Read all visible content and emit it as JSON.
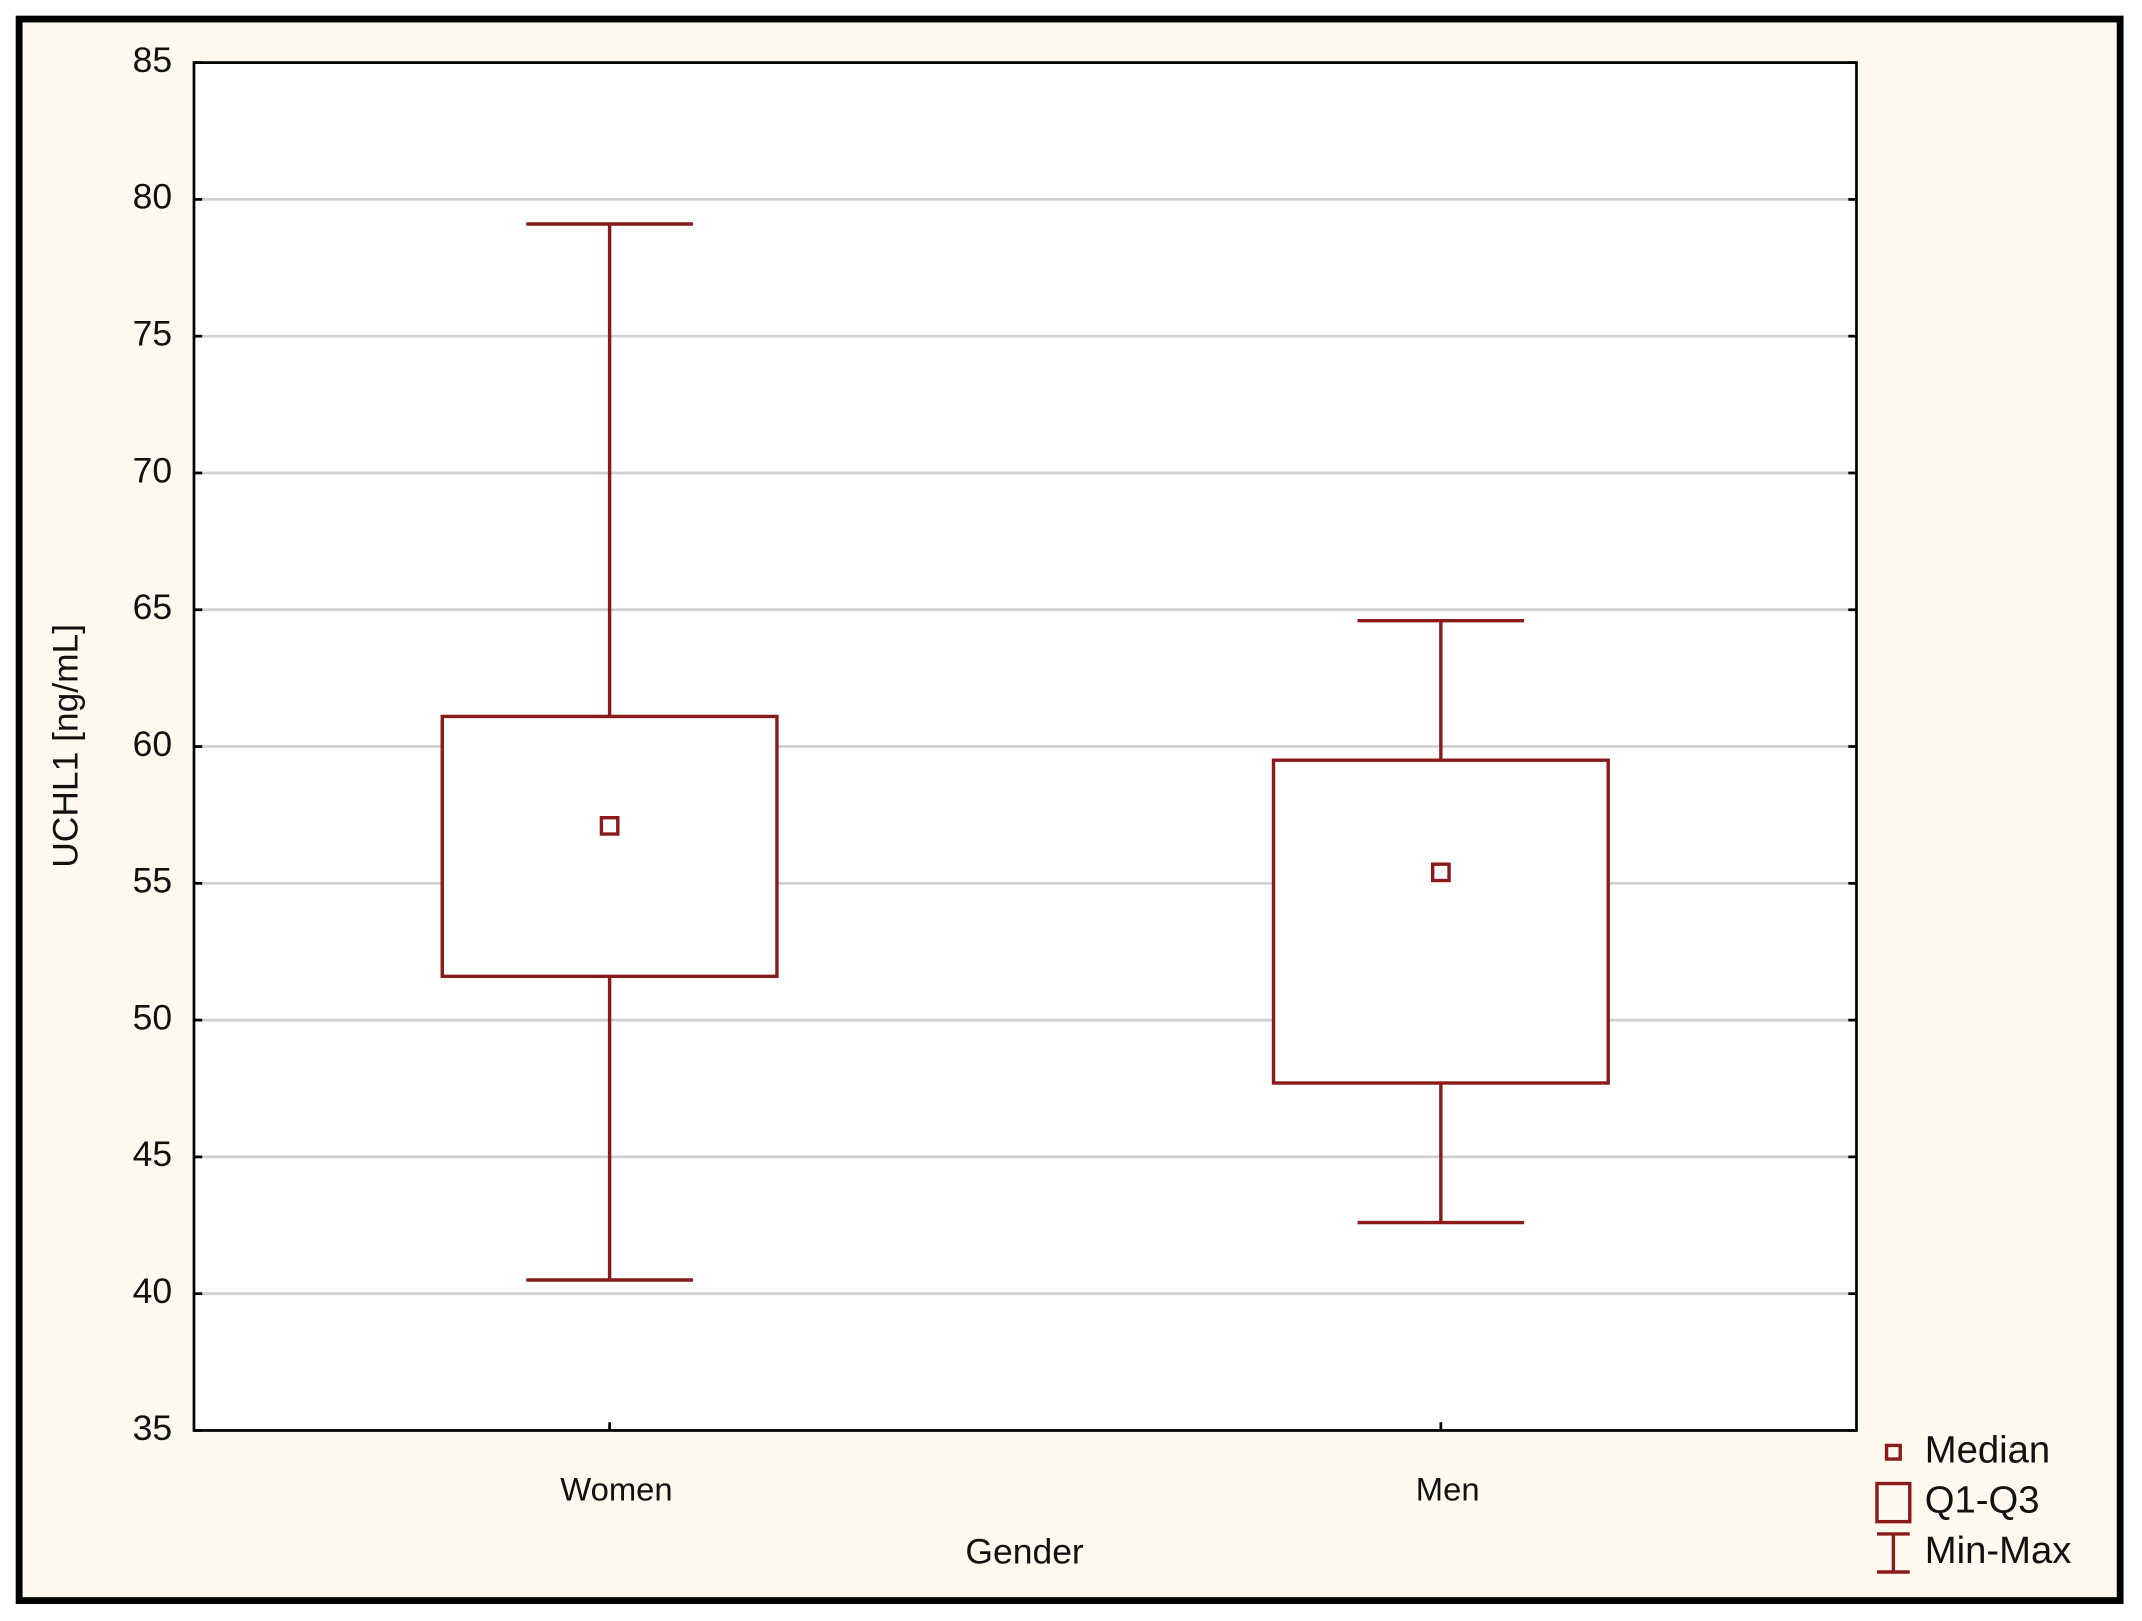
{
  "chart_data": {
    "type": "box",
    "y_label": "UCHL1 [ng/mL]",
    "x_label": "Gender",
    "categories": [
      "Women",
      "Men"
    ],
    "min": [
      40.5,
      42.6
    ],
    "q1": [
      51.6,
      47.7
    ],
    "median": [
      57.1,
      55.4
    ],
    "q3": [
      61.1,
      59.5
    ],
    "max": [
      79.1,
      64.6
    ],
    "color": "#8b1a1a",
    "ylim": [
      35,
      85
    ],
    "yticks": [
      35,
      40,
      45,
      50,
      55,
      60,
      65,
      70,
      75,
      80,
      85
    ],
    "grid": true,
    "legend": [
      "Median",
      "Q1-Q3",
      "Min-Max"
    ],
    "legend_position": "bottom-right"
  }
}
